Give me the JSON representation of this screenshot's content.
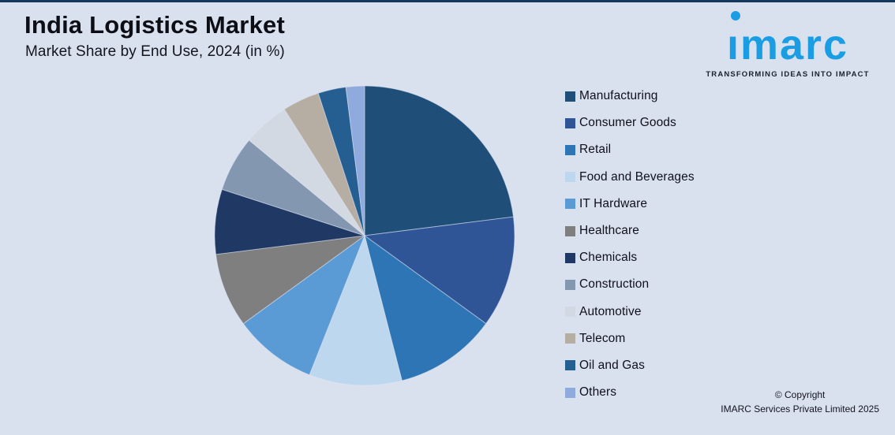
{
  "colors": {
    "background": "#D9E1EF",
    "topbar": "#17365D",
    "brand_blue": "#1B9DE4",
    "text_dark": "#10101C"
  },
  "header": {
    "title": "India Logistics Market",
    "subtitle": "Market Share by End Use, 2024 (in %)"
  },
  "branding": {
    "logo_text": "imarc",
    "logo_display": "ımarc",
    "tagline": "TRANSFORMING IDEAS INTO IMPACT"
  },
  "chart_data": {
    "type": "pie",
    "title": "India Logistics Market",
    "subtitle": "Market Share by End Use, 2024 (in %)",
    "unit": "%",
    "direction": "clockwise",
    "start_angle_deg": 0,
    "legend_position": "right",
    "data_labels_shown": false,
    "labels": [
      "Manufacturing",
      "Consumer Goods",
      "Retail",
      "Food and Beverages",
      "IT Hardware",
      "Healthcare",
      "Chemicals",
      "Construction",
      "Automotive",
      "Telecom",
      "Oil and Gas",
      "Others"
    ],
    "values": [
      23,
      12,
      11,
      10,
      9,
      8,
      7,
      6,
      5,
      4,
      3,
      2
    ],
    "colors": [
      "#1F4E79",
      "#2F5597",
      "#2E75B6",
      "#BDD7EE",
      "#5B9BD5",
      "#7F7F7F",
      "#1F3864",
      "#8497B0",
      "#D3D9E3",
      "#B6AEA3",
      "#255E91",
      "#8FAADC"
    ]
  },
  "footer": {
    "copyright_line1": "© Copyright",
    "copyright_line2": "IMARC Services Private Limited 2025"
  }
}
